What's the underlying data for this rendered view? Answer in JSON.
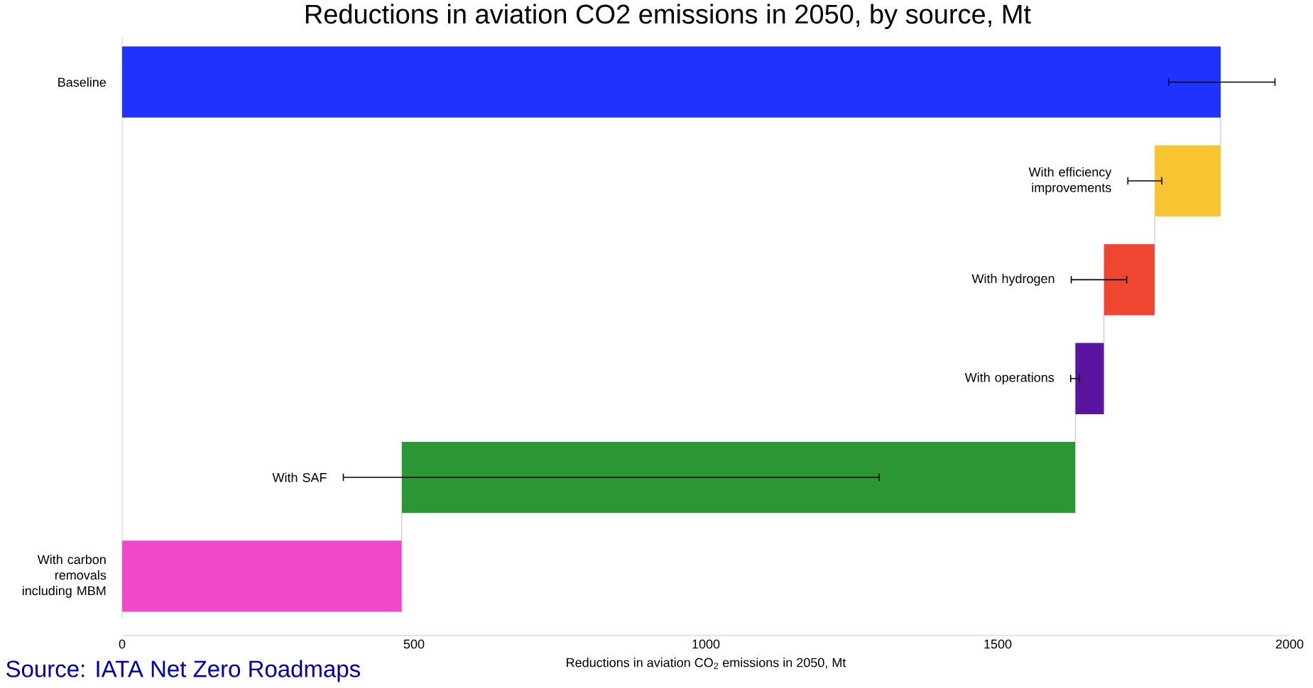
{
  "chart_data": {
    "type": "bar",
    "orientation": "horizontal",
    "title": "Reductions in aviation CO2 emissions in 2050, by source, Mt",
    "xlabel": "Reductions in aviation CO$_{2}$ emissions in 2050, Mt",
    "categories": [
      "Baseline",
      "With efficiency improvements",
      "With hydrogen",
      "With operations",
      "With SAF",
      "With carbon removals including MBM"
    ],
    "values": [
      1882,
      113,
      87,
      49,
      1154,
      479
    ],
    "base": [
      0,
      1769,
      1682,
      1633,
      479,
      0
    ],
    "colors": [
      "#1f33ff",
      "#f7c531",
      "#ee4631",
      "#5a14a0",
      "#2a9634",
      "#ef48c8"
    ],
    "errors": [
      [
        1792,
        1976
      ],
      [
        1722,
        1782
      ],
      [
        1625,
        1722
      ],
      [
        1624,
        1641
      ],
      [
        378,
        1298
      ],
      null
    ],
    "xlim": [
      0,
      2000
    ],
    "xticks": [
      0,
      500,
      1000,
      1500,
      2000
    ],
    "annotations": [
      "Source: IATA Net Zero Roadmaps"
    ]
  }
}
